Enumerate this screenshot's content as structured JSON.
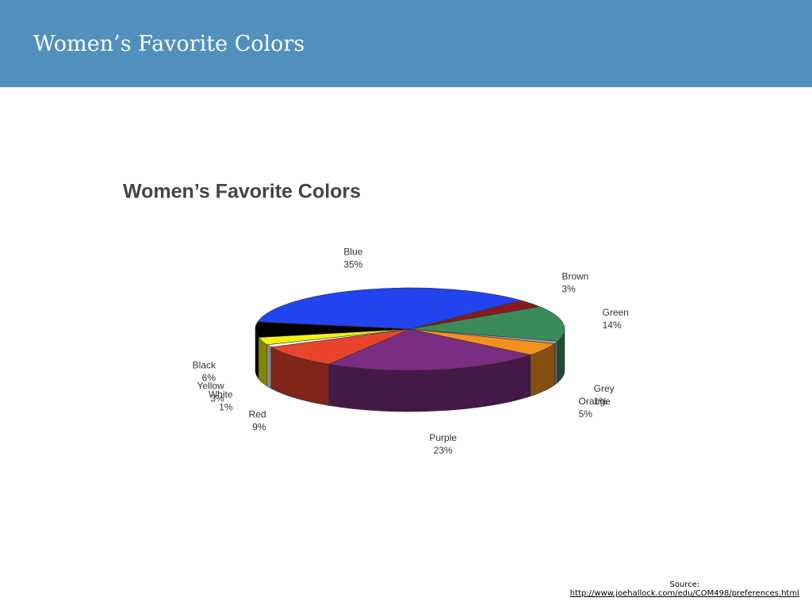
{
  "slide": {
    "title": "Women’s Favorite Colors"
  },
  "chart_data": {
    "type": "pie",
    "title": "Women’s Favorite Colors",
    "categories": [
      "Blue",
      "Brown",
      "Green",
      "Grey",
      "Orange",
      "Purple",
      "Red",
      "White",
      "Yellow",
      "Black"
    ],
    "values": [
      35,
      3,
      14,
      1,
      5,
      23,
      9,
      1,
      3,
      6
    ],
    "value_labels": [
      "35%",
      "3%",
      "14%",
      "1%",
      "5%",
      "23%",
      "9%",
      "1%",
      "3%",
      "6%"
    ],
    "colors": [
      "#2244ee",
      "#8b1a1a",
      "#3a8a5a",
      "#a0a0a0",
      "#f4901e",
      "#7b2d83",
      "#e8452c",
      "#ffffff",
      "#f2f20e",
      "#000000"
    ]
  },
  "source": {
    "label": "Source:",
    "url": "http://www.joehallock.com/edu/COM498/preferences.html"
  }
}
